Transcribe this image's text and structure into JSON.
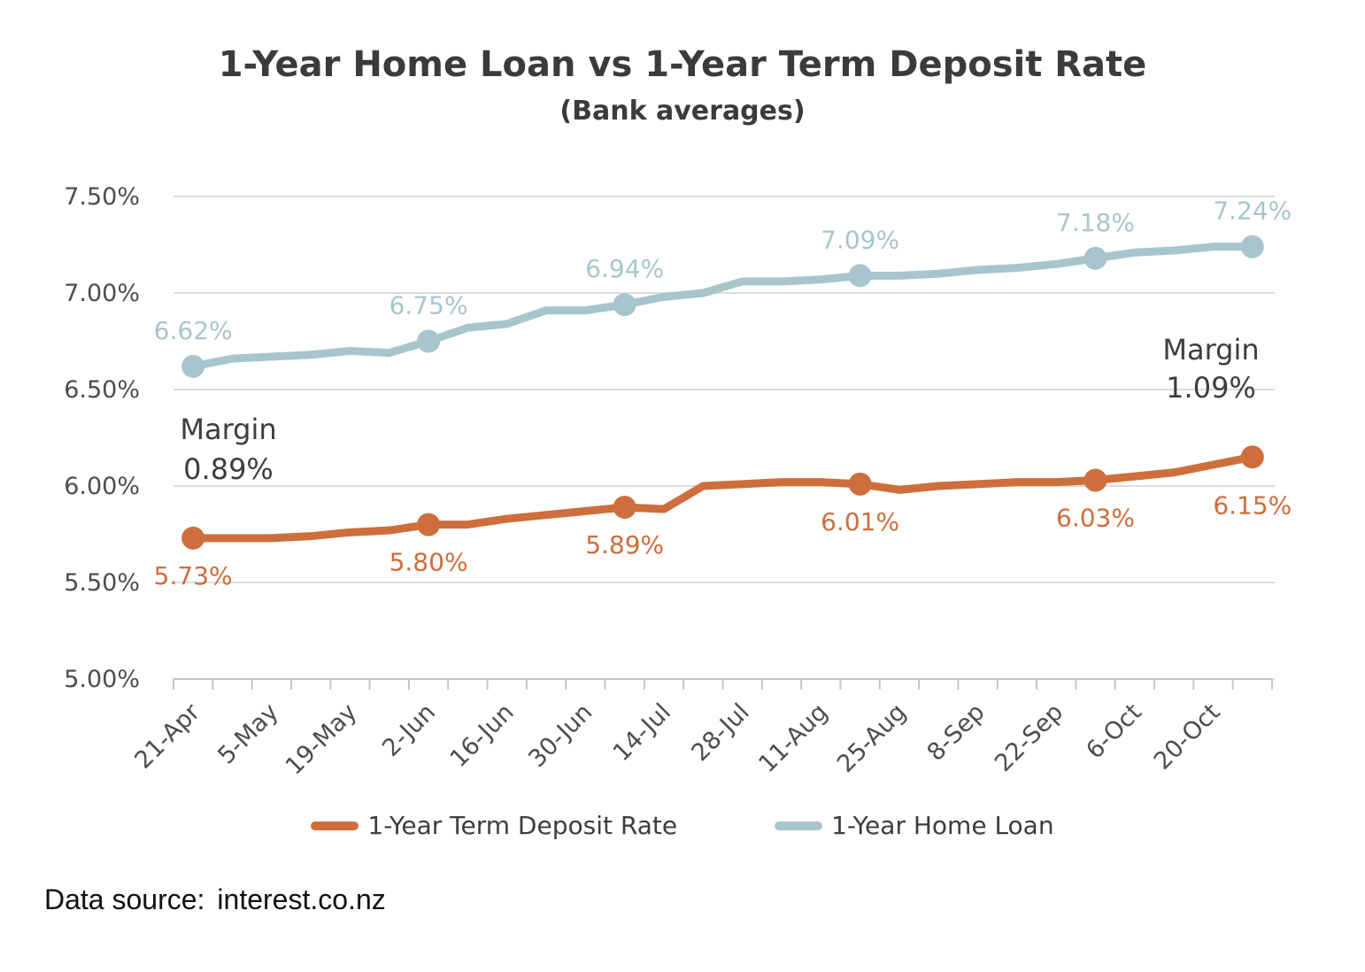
{
  "title": "1-Year Home Loan vs 1-Year Term Deposit Rate",
  "subtitle": "(Bank averages)",
  "legend": {
    "items": [
      {
        "label": "1-Year Term Deposit Rate",
        "color": "#CD6E3C"
      },
      {
        "label": "1-Year Home Loan",
        "color": "#A8C5CE"
      }
    ]
  },
  "source": {
    "label": "Data source:",
    "value": "interest.co.nz"
  },
  "chart_data": {
    "type": "line",
    "title": "1-Year Home Loan vs 1-Year Term Deposit Rate",
    "subtitle": "(Bank averages)",
    "x": [
      "21-Apr",
      "28-Apr",
      "5-May",
      "12-May",
      "19-May",
      "26-May",
      "2-Jun",
      "9-Jun",
      "16-Jun",
      "23-Jun",
      "30-Jun",
      "7-Jul",
      "14-Jul",
      "21-Jul",
      "28-Jul",
      "4-Aug",
      "11-Aug",
      "18-Aug",
      "25-Aug",
      "1-Sep",
      "8-Sep",
      "15-Sep",
      "22-Sep",
      "29-Sep",
      "6-Oct",
      "13-Oct",
      "20-Oct",
      "27-Oct"
    ],
    "x_tick_labels": [
      "21-Apr",
      "5-May",
      "19-May",
      "2-Jun",
      "16-Jun",
      "30-Jun",
      "14-Jul",
      "28-Jul",
      "11-Aug",
      "25-Aug",
      "8-Sep",
      "22-Sep",
      "6-Oct",
      "20-Oct"
    ],
    "series": [
      {
        "name": "1-Year Home Loan",
        "color": "#A8C5CE",
        "values": [
          6.62,
          6.66,
          6.67,
          6.68,
          6.7,
          6.69,
          6.75,
          6.82,
          6.84,
          6.91,
          6.91,
          6.94,
          6.98,
          7.0,
          7.06,
          7.06,
          7.07,
          7.09,
          7.09,
          7.1,
          7.12,
          7.13,
          7.15,
          7.18,
          7.21,
          7.22,
          7.24,
          7.24
        ]
      },
      {
        "name": "1-Year Term Deposit Rate",
        "color": "#CD6E3C",
        "values": [
          5.73,
          5.73,
          5.73,
          5.74,
          5.76,
          5.77,
          5.8,
          5.8,
          5.83,
          5.85,
          5.87,
          5.89,
          5.88,
          6.0,
          6.01,
          6.02,
          6.02,
          6.01,
          5.98,
          6.0,
          6.01,
          6.02,
          6.02,
          6.03,
          6.05,
          6.07,
          6.11,
          6.15
        ]
      }
    ],
    "labeled_points": [
      {
        "date": "21-Apr",
        "index": 0,
        "home_loan_label": "6.62%",
        "term_deposit_label": "5.73%"
      },
      {
        "date": "2-Jun",
        "index": 6,
        "home_loan_label": "6.75%",
        "term_deposit_label": "5.80%"
      },
      {
        "date": "7-Jul",
        "index": 11,
        "home_loan_label": "6.94%",
        "term_deposit_label": "5.89%"
      },
      {
        "date": "18-Aug",
        "index": 17,
        "home_loan_label": "7.09%",
        "term_deposit_label": "6.01%"
      },
      {
        "date": "29-Sep",
        "index": 23,
        "home_loan_label": "7.18%",
        "term_deposit_label": "6.03%"
      },
      {
        "date": "27-Oct",
        "index": 27,
        "home_loan_label": "7.24%",
        "term_deposit_label": "6.15%"
      }
    ],
    "margin_annotations": [
      {
        "label": "Margin",
        "value": "0.89%",
        "position": "start"
      },
      {
        "label": "Margin",
        "value": "1.09%",
        "position": "end"
      }
    ],
    "ylim": [
      5.0,
      7.5
    ],
    "yticks": [
      {
        "value": 7.5,
        "label": "7.50%"
      },
      {
        "value": 7.0,
        "label": "7.00%"
      },
      {
        "value": 6.5,
        "label": "6.50%"
      },
      {
        "value": 6.0,
        "label": "6.00%"
      },
      {
        "value": 5.5,
        "label": "5.50%"
      },
      {
        "value": 5.0,
        "label": "5.00%"
      }
    ],
    "grid": true,
    "legend_position": "bottom"
  }
}
